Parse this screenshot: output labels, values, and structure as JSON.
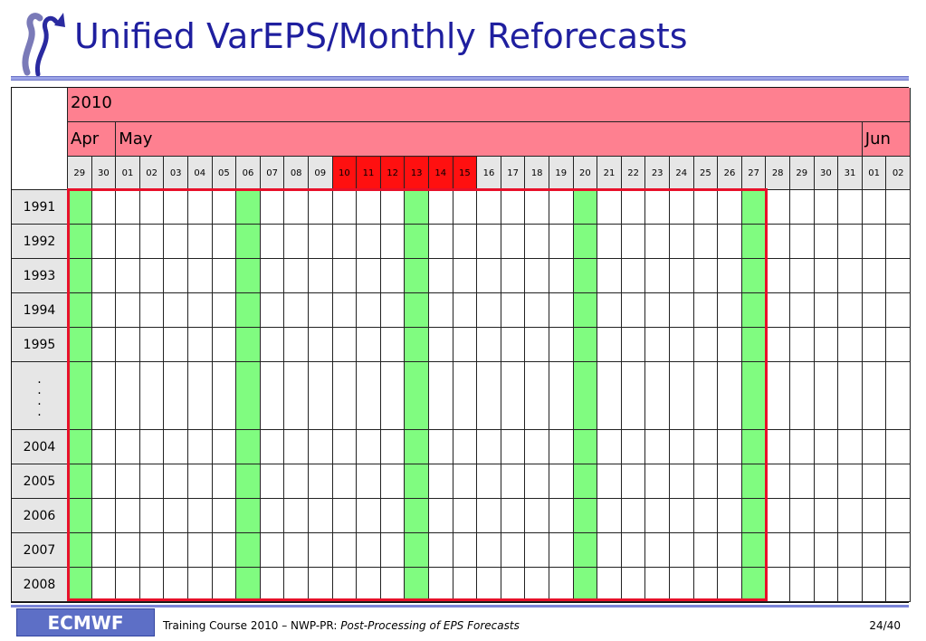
{
  "title": "Unified VarEPS/Monthly Reforecasts",
  "calendar": {
    "year": "2010",
    "months": [
      "Apr",
      "May",
      "Jun"
    ],
    "days": [
      "29",
      "30",
      "01",
      "02",
      "03",
      "04",
      "05",
      "06",
      "07",
      "08",
      "09",
      "10",
      "11",
      "12",
      "13",
      "14",
      "15",
      "16",
      "17",
      "18",
      "19",
      "20",
      "21",
      "22",
      "23",
      "24",
      "25",
      "26",
      "27",
      "28",
      "29",
      "30",
      "31",
      "01",
      "02"
    ],
    "red_day_indices": [
      11,
      12,
      13,
      14,
      15,
      16
    ],
    "green_day_indices": [
      0,
      7,
      14,
      21,
      28
    ],
    "years": [
      "1991",
      "1992",
      "1993",
      "1994",
      "1995",
      "...",
      "2004",
      "2005",
      "2006",
      "2007",
      "2008"
    ]
  },
  "footer": {
    "logo_text": "ECMWF",
    "course": "Training Course 2010 – NWP-PR: ",
    "topic": "Post-Processing of EPS Forecasts",
    "page": "24/40"
  },
  "colors": {
    "title": "#1f1f9f",
    "header_pink": "#fe8090",
    "day_grey": "#e6e6e6",
    "day_red": "#ff1010",
    "green": "#80fc80",
    "highlight": "#e8102a"
  }
}
